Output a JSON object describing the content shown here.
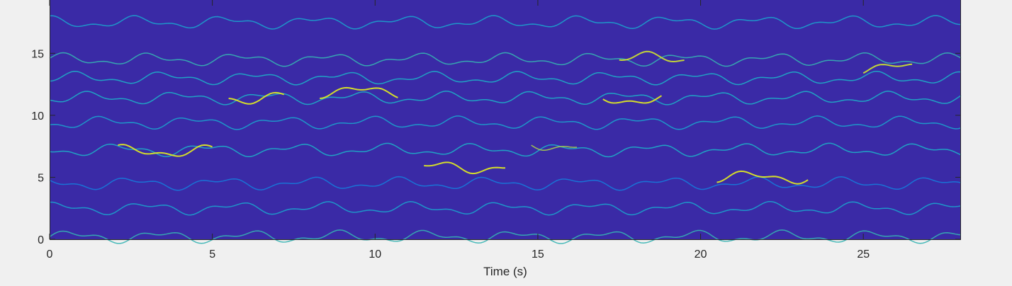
{
  "chart_data": {
    "type": "heatmap",
    "title": "",
    "xlabel": "Time (s)",
    "ylabel": "",
    "xlim": [
      0,
      28
    ],
    "ylim": [
      0,
      19.3
    ],
    "x_ticks": [
      0,
      5,
      10,
      15,
      20,
      25
    ],
    "y_ticks": [
      0,
      5,
      10,
      15
    ],
    "x_tick_labels": [
      "0",
      "5",
      "10",
      "15",
      "20",
      "25"
    ],
    "y_tick_labels": [
      "0",
      "5",
      "10",
      "15"
    ],
    "grid": false,
    "colormap": "parula",
    "background_color": "#3a2aa6",
    "ridges": [
      {
        "y": 0.2,
        "x": [
          0,
          28
        ],
        "intensity": 0.55
      },
      {
        "y": 2.5,
        "x": [
          0,
          28
        ],
        "intensity": 0.45
      },
      {
        "y": 4.5,
        "x": [
          0,
          28
        ],
        "intensity": 0.3
      },
      {
        "y": 7.2,
        "x": [
          0,
          28
        ],
        "intensity": 0.5
      },
      {
        "y": 9.4,
        "x": [
          0,
          28
        ],
        "intensity": 0.45
      },
      {
        "y": 11.4,
        "x": [
          0,
          28
        ],
        "intensity": 0.5
      },
      {
        "y": 13.0,
        "x": [
          0,
          28
        ],
        "intensity": 0.5
      },
      {
        "y": 14.5,
        "x": [
          0,
          28
        ],
        "intensity": 0.55
      },
      {
        "y": 17.5,
        "x": [
          0,
          28
        ],
        "intensity": 0.45
      },
      {
        "y": 7.1,
        "x": [
          2.1,
          5.0
        ],
        "intensity": 0.95
      },
      {
        "y": 11.4,
        "x": [
          5.5,
          7.2
        ],
        "intensity": 0.95
      },
      {
        "y": 11.9,
        "x": [
          8.3,
          10.7
        ],
        "intensity": 0.95
      },
      {
        "y": 5.8,
        "x": [
          11.5,
          14.0
        ],
        "intensity": 0.95
      },
      {
        "y": 7.6,
        "x": [
          14.8,
          16.2
        ],
        "intensity": 0.8
      },
      {
        "y": 11.3,
        "x": [
          17.0,
          18.8
        ],
        "intensity": 0.95
      },
      {
        "y": 5.0,
        "x": [
          20.5,
          23.3
        ],
        "intensity": 0.95
      },
      {
        "y": 14.6,
        "x": [
          17.5,
          19.5
        ],
        "intensity": 0.9
      },
      {
        "y": 13.8,
        "x": [
          25.0,
          26.5
        ],
        "intensity": 0.9
      }
    ]
  }
}
